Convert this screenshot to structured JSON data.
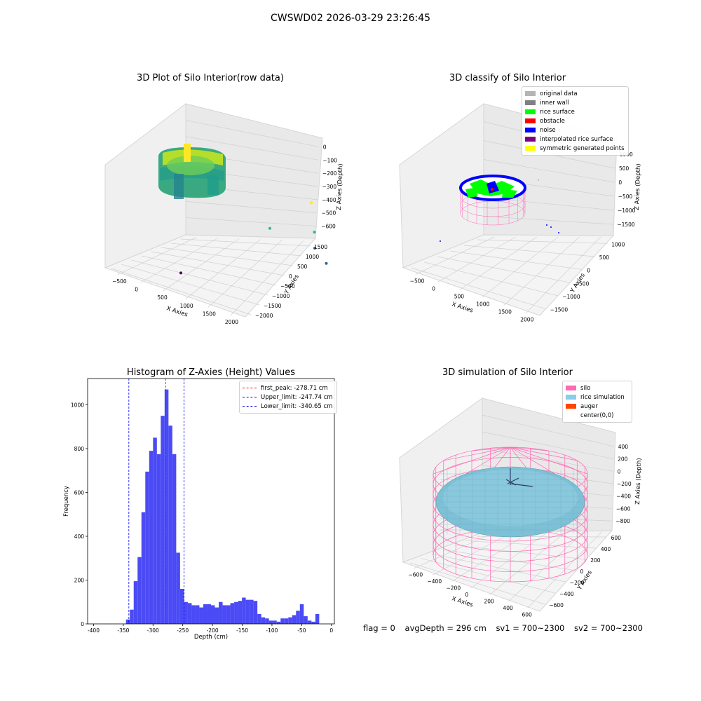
{
  "suptitle": "CWSWD02 2026-03-29 23:26:45",
  "footer": {
    "flag": "flag = 0",
    "avg_depth": "avgDepth = 296 cm",
    "sv1": "sv1 = 700~2300",
    "sv2": "sv2 = 700~2300"
  },
  "chart_data": [
    {
      "type": "scatter3d",
      "title": "3D Plot of Silo Interior(row data)",
      "xlabel": "X Axies",
      "ylabel": "Y Axies",
      "zlabel": "Z Axies (Depth)",
      "x_ticks": [
        "−500",
        "0",
        "500",
        "1000",
        "1500",
        "2000"
      ],
      "y_ticks": [
        "−2000",
        "−1500",
        "−1000",
        "−500",
        "0",
        "500",
        "1000",
        "1500"
      ],
      "z_ticks": [
        "0",
        "−100",
        "−200",
        "−300",
        "−400",
        "−500",
        "−600"
      ],
      "colormap": [
        "#440154",
        "#31688e",
        "#35b779",
        "#fde725"
      ],
      "outlier_points": [
        {
          "x": 0,
          "y": -1800,
          "z": -620
        },
        {
          "x": 800,
          "y": -100,
          "z": -460
        },
        {
          "x": 1500,
          "y": -200,
          "z": -430
        },
        {
          "x": 1600,
          "y": -500,
          "z": -520
        },
        {
          "x": 1900,
          "y": -900,
          "z": -570
        },
        {
          "x": 1200,
          "y": 600,
          "z": -320
        }
      ]
    },
    {
      "type": "scatter3d",
      "title": "3D classify of Silo Interior",
      "xlabel": "X Axies",
      "ylabel": "Y Axies",
      "zlabel": "Z Axies (Depth)",
      "x_ticks": [
        "−500",
        "0",
        "500",
        "1000",
        "1500",
        "2000"
      ],
      "y_ticks": [
        "−1500",
        "−1000",
        "−500",
        "0",
        "500",
        "1000"
      ],
      "z_ticks": [
        "1000",
        "500",
        "0",
        "−500",
        "−1000",
        "−1500"
      ],
      "legend": [
        {
          "label": "original data",
          "color": "#b4b4b4"
        },
        {
          "label": "inner wall",
          "color": "#808080"
        },
        {
          "label": "rice surface",
          "color": "#00ff00"
        },
        {
          "label": "obstacle",
          "color": "#ff0000"
        },
        {
          "label": "noise",
          "color": "#0000ff"
        },
        {
          "label": "interpolated rice surface",
          "color": "#800080"
        },
        {
          "label": "symmetric generated points",
          "color": "#ffff00"
        }
      ]
    },
    {
      "type": "bar",
      "title": "Histogram of Z-Axies (Height) Values",
      "xlabel": "Depth (cm)",
      "ylabel": "Frequency",
      "xlim": [
        -410,
        5
      ],
      "ylim": [
        0,
        1120
      ],
      "x_ticks": [
        -400,
        -350,
        -300,
        -250,
        -200,
        -150,
        -100,
        -50,
        0
      ],
      "y_ticks": [
        0,
        200,
        400,
        600,
        800,
        1000
      ],
      "bin_width": 6.5,
      "bar_color": "#4b4bf5",
      "bins_start": [
        -345.5,
        -339,
        -332.5,
        -326,
        -319.5,
        -313,
        -306.5,
        -300,
        -293.5,
        -287,
        -280.5,
        -274,
        -267.5,
        -261,
        -254.5,
        -248,
        -241.5,
        -235,
        -228.5,
        -222,
        -215.5,
        -209,
        -202.5,
        -196,
        -189.5,
        -183,
        -176.5,
        -170,
        -163.5,
        -157,
        -150.5,
        -144,
        -137.5,
        -131,
        -124.5,
        -118,
        -111.5,
        -105,
        -98.5,
        -92,
        -85.5,
        -79,
        -72.5,
        -66,
        -59.5,
        -53,
        -46.5,
        -40,
        -33.5,
        -27,
        -20.5,
        -14,
        -7.5,
        -1
      ],
      "values": [
        20,
        65,
        195,
        305,
        510,
        695,
        790,
        850,
        775,
        950,
        1070,
        905,
        775,
        325,
        160,
        100,
        95,
        85,
        85,
        75,
        90,
        90,
        85,
        75,
        100,
        85,
        85,
        95,
        100,
        105,
        120,
        110,
        110,
        105,
        45,
        30,
        25,
        15,
        15,
        10,
        25,
        25,
        30,
        40,
        60,
        90,
        35,
        15,
        10,
        45,
        0,
        0,
        0,
        0
      ],
      "reference_lines": [
        {
          "label": "first_peak: -278.71 cm",
          "x": -278.71,
          "color": "#ff0000"
        },
        {
          "label": "Upper_limit: -247.74 cm",
          "x": -247.74,
          "color": "#0000ff"
        },
        {
          "label": "Lower_limit: -340.65 cm",
          "x": -340.65,
          "color": "#0000ff"
        }
      ]
    },
    {
      "type": "surface3d",
      "title": "3D simulation of Silo Interior",
      "xlabel": "X Axies",
      "ylabel": "Y Axies",
      "zlabel": "Z Axies (Depth)",
      "x_ticks": [
        "−600",
        "−400",
        "−200",
        "0",
        "200",
        "400",
        "600"
      ],
      "y_ticks": [
        "−600",
        "−400",
        "−200",
        "0",
        "200",
        "400",
        "600"
      ],
      "z_ticks": [
        "400",
        "200",
        "0",
        "−200",
        "−400",
        "−600",
        "−800"
      ],
      "legend": [
        {
          "label": "silo",
          "color": "#ff69b4"
        },
        {
          "label": "rice simulation",
          "color": "#87ceeb"
        },
        {
          "label": "auger",
          "color": "#ff4500"
        },
        {
          "label": "center(0,0)",
          "color": "#ffffff"
        }
      ]
    }
  ]
}
